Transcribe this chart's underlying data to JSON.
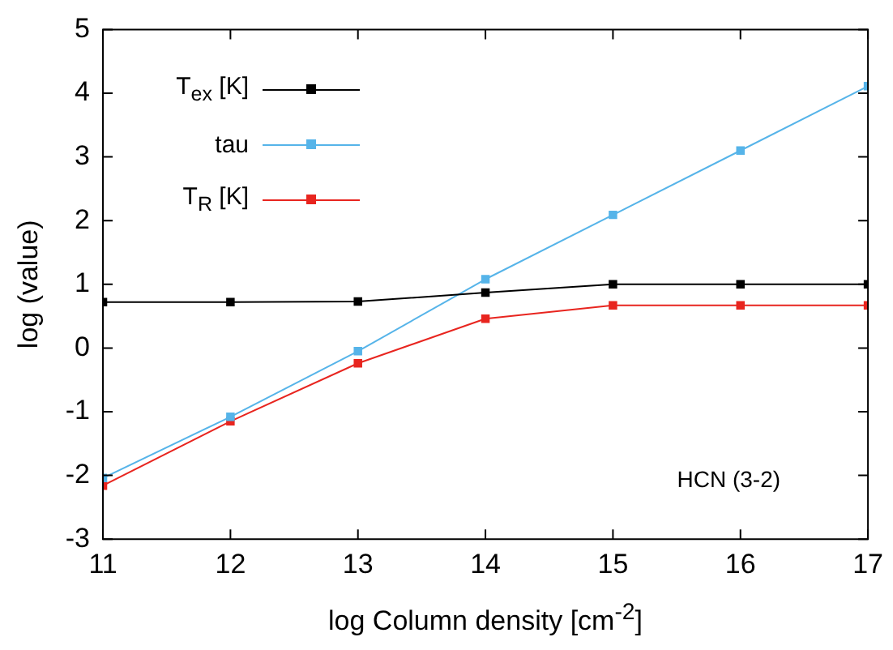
{
  "chart_data": {
    "type": "line",
    "xlabel": "log Column density [cm$^{-2}$]",
    "ylabel": "log (value)",
    "x": [
      11,
      12,
      13,
      14,
      15,
      16,
      17
    ],
    "series": [
      {
        "name": "T$_{ex}$ [K]",
        "color": "#000000",
        "values": [
          0.72,
          0.72,
          0.73,
          0.87,
          1.0,
          1.0,
          1.0
        ]
      },
      {
        "name": "tau",
        "color": "#56b4e9",
        "values": [
          -2.04,
          -1.08,
          -0.05,
          1.08,
          2.09,
          3.1,
          4.11
        ]
      },
      {
        "name": "T$_{R}$ [K]",
        "color": "#e8251f",
        "values": [
          -2.16,
          -1.15,
          -0.24,
          0.46,
          0.67,
          0.67,
          0.67
        ]
      }
    ],
    "xlim": [
      11,
      17
    ],
    "xticks": [
      11,
      12,
      13,
      14,
      15,
      16,
      17
    ],
    "ylim": [
      -3,
      5
    ],
    "yticks": [
      -3,
      -2,
      -1,
      0,
      1,
      2,
      3,
      4,
      5
    ],
    "grid": false,
    "legend": "top left",
    "marker": "square",
    "line_style": "solid",
    "annotations": [
      "HCN (3-2)"
    ]
  }
}
